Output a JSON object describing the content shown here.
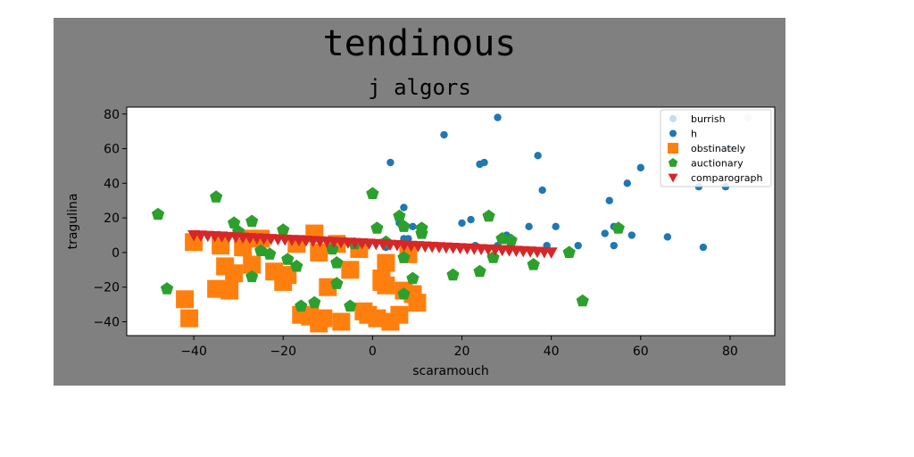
{
  "chart_data": {
    "type": "scatter",
    "title": "tendinous",
    "subtitle": "j algors",
    "xlabel": "scaramouch",
    "ylabel": "tragulina",
    "xlim": [
      -55,
      90
    ],
    "ylim": [
      -48,
      84
    ],
    "xticks": [
      -40,
      -20,
      0,
      20,
      40,
      60,
      80
    ],
    "yticks": [
      -40,
      -20,
      0,
      20,
      40,
      60,
      80
    ],
    "grid": false,
    "legend_position": "top-right",
    "series": [
      {
        "name": "burrish",
        "marker": "circle",
        "color": "#c6dbef",
        "points": [
          [
            68,
            78
          ],
          [
            84,
            78
          ]
        ]
      },
      {
        "name": "h",
        "marker": "circle",
        "color": "#1f77b4",
        "points": [
          [
            28,
            78
          ],
          [
            16,
            68
          ],
          [
            4,
            52
          ],
          [
            24,
            51
          ],
          [
            25,
            52
          ],
          [
            37,
            56
          ],
          [
            38,
            36
          ],
          [
            57,
            40
          ],
          [
            60,
            49
          ],
          [
            80,
            60
          ],
          [
            79,
            38
          ],
          [
            73,
            38
          ],
          [
            53,
            30
          ],
          [
            7,
            26
          ],
          [
            6,
            17
          ],
          [
            7,
            8
          ],
          [
            8,
            8
          ],
          [
            9,
            15
          ],
          [
            20,
            17
          ],
          [
            22,
            19
          ],
          [
            30,
            10
          ],
          [
            35,
            15
          ],
          [
            41,
            15
          ],
          [
            39,
            4
          ],
          [
            46,
            4
          ],
          [
            52,
            11
          ],
          [
            54,
            15
          ],
          [
            58,
            10
          ],
          [
            66,
            9
          ],
          [
            54,
            4
          ],
          [
            74,
            3
          ],
          [
            28,
            4
          ],
          [
            23,
            4
          ],
          [
            9,
            3
          ],
          [
            3,
            3
          ]
        ]
      },
      {
        "name": "obstinately",
        "marker": "square",
        "color": "#ff7f0e",
        "points": [
          [
            -42,
            -27
          ],
          [
            -41,
            -38
          ],
          [
            -40,
            6
          ],
          [
            -35,
            -21
          ],
          [
            -34,
            4
          ],
          [
            -32,
            -22
          ],
          [
            -33,
            -8
          ],
          [
            -31,
            -12
          ],
          [
            -29,
            3
          ],
          [
            -27,
            8
          ],
          [
            -27,
            -7
          ],
          [
            -25,
            8
          ],
          [
            -22,
            -11
          ],
          [
            -20,
            -17
          ],
          [
            -19,
            -13
          ],
          [
            -17,
            5
          ],
          [
            -16,
            -36
          ],
          [
            -14,
            -37
          ],
          [
            -13,
            11
          ],
          [
            -12,
            -41
          ],
          [
            -11,
            -38
          ],
          [
            -12,
            0
          ],
          [
            -10,
            -20
          ],
          [
            -7,
            -40
          ],
          [
            -3,
            2
          ],
          [
            -2,
            -34
          ],
          [
            -1,
            -36
          ],
          [
            1,
            -38
          ],
          [
            2,
            -15
          ],
          [
            3,
            -19
          ],
          [
            4,
            -40
          ],
          [
            2,
            -17
          ],
          [
            3,
            -6
          ],
          [
            6,
            -36
          ],
          [
            7,
            -22
          ],
          [
            9,
            -24
          ],
          [
            10,
            -29
          ],
          [
            8,
            -1
          ],
          [
            -8,
            5
          ],
          [
            -5,
            -10
          ]
        ]
      },
      {
        "name": "auctionary",
        "marker": "pentagon",
        "color": "#2ca02c",
        "points": [
          [
            -48,
            22
          ],
          [
            -46,
            -21
          ],
          [
            -35,
            32
          ],
          [
            -31,
            17
          ],
          [
            -27,
            18
          ],
          [
            -27,
            -14
          ],
          [
            -25,
            1
          ],
          [
            -23,
            -1
          ],
          [
            -20,
            13
          ],
          [
            -19,
            -4
          ],
          [
            -17,
            -8
          ],
          [
            -16,
            -31
          ],
          [
            -13,
            -29
          ],
          [
            -9,
            2
          ],
          [
            -8,
            -6
          ],
          [
            -8,
            -18
          ],
          [
            -5,
            -31
          ],
          [
            0,
            34
          ],
          [
            1,
            14
          ],
          [
            3,
            6
          ],
          [
            6,
            21
          ],
          [
            7,
            15
          ],
          [
            7,
            -3
          ],
          [
            7,
            -24
          ],
          [
            9,
            -15
          ],
          [
            11,
            14
          ],
          [
            11,
            11
          ],
          [
            18,
            -13
          ],
          [
            24,
            -11
          ],
          [
            26,
            21
          ],
          [
            27,
            -3
          ],
          [
            29,
            8
          ],
          [
            31,
            7
          ],
          [
            36,
            -7
          ],
          [
            44,
            0
          ],
          [
            47,
            -28
          ],
          [
            55,
            14
          ],
          [
            -30,
            12
          ],
          [
            -4,
            5
          ]
        ]
      },
      {
        "name": "comparograph",
        "marker": "triangle_down",
        "color": "#d62728",
        "line": {
          "x_start": -40,
          "x_end": 40,
          "y_start": 10,
          "y_end": 0,
          "count": 52
        }
      }
    ]
  }
}
